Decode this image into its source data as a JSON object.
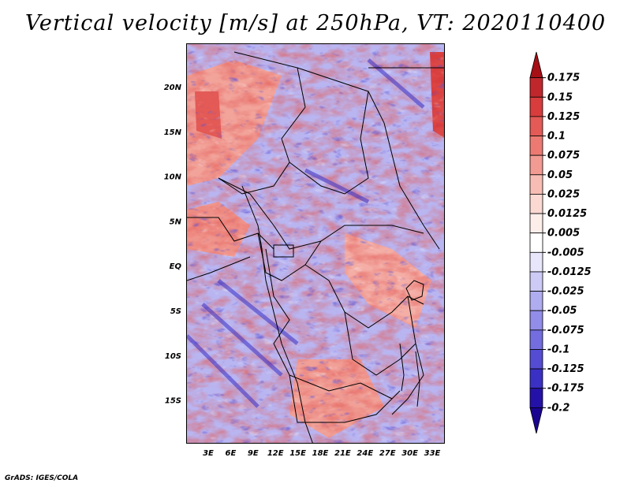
{
  "title": "Vertical velocity [m/s] at 250hPa, VT: 2020110400",
  "credit": "GrADS: IGES/COLA",
  "map": {
    "lon_labels": [
      "3E",
      "6E",
      "9E",
      "12E",
      "15E",
      "18E",
      "21E",
      "24E",
      "27E",
      "30E",
      "33E"
    ],
    "lat_labels": [
      "20N",
      "15N",
      "10N",
      "5N",
      "EQ",
      "5S",
      "10S",
      "15S"
    ]
  },
  "colorbar": {
    "labels": [
      "0.175",
      "0.15",
      "0.125",
      "0.1",
      "0.075",
      "0.05",
      "0.025",
      "0.0125",
      "0.005",
      "-0.005",
      "-0.0125",
      "-0.025",
      "-0.05",
      "-0.075",
      "-0.1",
      "-0.125",
      "-0.175",
      "-0.2"
    ],
    "colors": [
      "#a50f15",
      "#c0272d",
      "#d83c3c",
      "#e35a56",
      "#ec7a72",
      "#f29b92",
      "#f7bdb4",
      "#fbd9d2",
      "#fdeeea",
      "#ffffff",
      "#e8e6fb",
      "#cdcaf6",
      "#b0acf0",
      "#928de8",
      "#736ddf",
      "#544dd4",
      "#3a30c4",
      "#2412a8",
      "#1a0590"
    ]
  }
}
